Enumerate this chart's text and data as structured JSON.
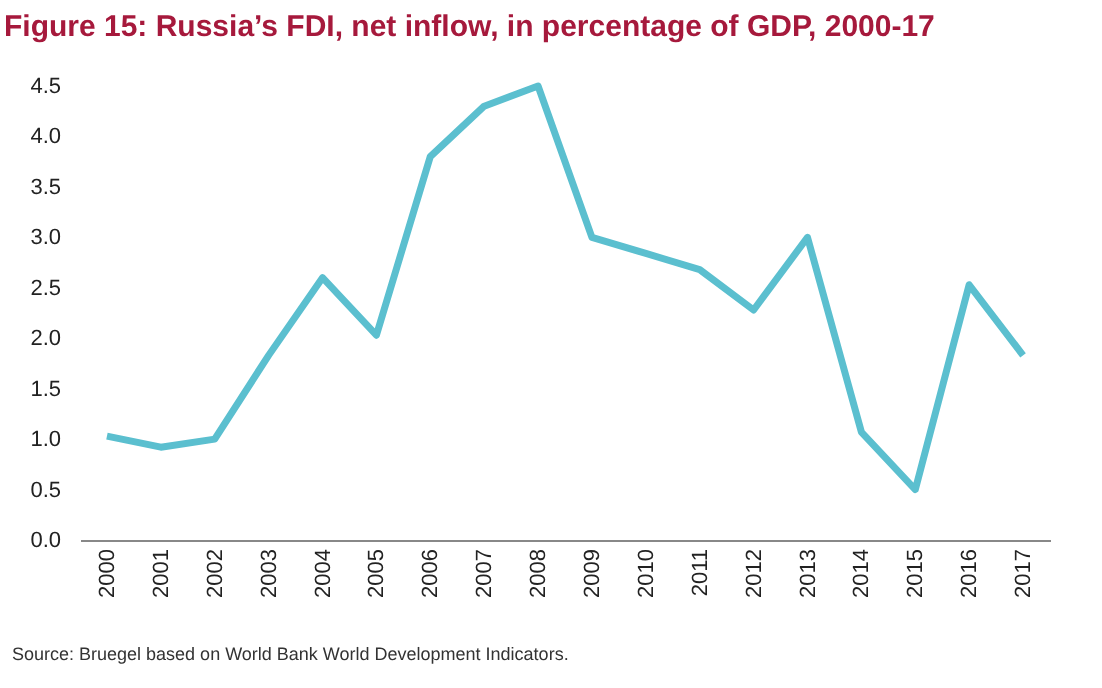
{
  "chart_data": {
    "type": "line",
    "title": "Figure 15: Russia’s FDI, net inflow, in percentage of GDP, 2000-17",
    "categories": [
      "2000",
      "2001",
      "2002",
      "2003",
      "2004",
      "2005",
      "2006",
      "2007",
      "2008",
      "2009",
      "2010",
      "2011",
      "2012",
      "2013",
      "2014",
      "2015",
      "2016",
      "2017"
    ],
    "series": [
      {
        "color": "#5bbfcf",
        "values": [
          1.03,
          0.92,
          1.0,
          1.83,
          2.6,
          2.03,
          3.8,
          4.3,
          4.5,
          3.0,
          2.84,
          2.68,
          2.28,
          3.0,
          1.07,
          0.5,
          2.53,
          1.83
        ]
      }
    ],
    "ylim": [
      0,
      4.5
    ],
    "yticks": [
      {
        "value": 0,
        "label": "0.0"
      },
      0.5,
      {
        "value": 1,
        "label": "1.0"
      },
      1.5,
      {
        "value": 2,
        "label": "2.0"
      },
      2.5,
      {
        "value": 3,
        "label": "3.0"
      },
      3.5,
      {
        "value": 4,
        "label": "4.0"
      },
      4.5
    ],
    "grid": false,
    "legend": false,
    "marker": "none",
    "line_style": "solid",
    "annotations": [
      "Source: Bruegel based on World Bank World Development Indicators."
    ]
  }
}
